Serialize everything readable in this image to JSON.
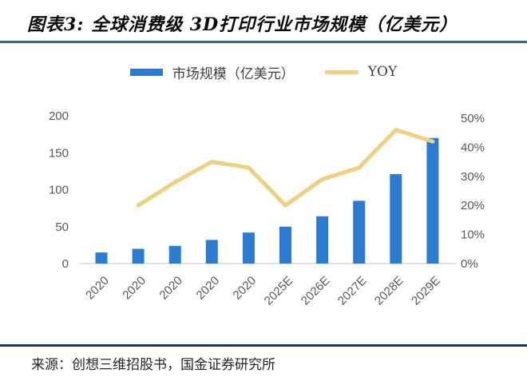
{
  "header": {
    "title": "图表3: 全球消费级 3D打印行业市场规模（亿美元）"
  },
  "chart_data": {
    "type": "bar+line",
    "title": "全球消费级 3D打印行业市场规模（亿美元）",
    "categories": [
      "2020",
      "2020",
      "2020",
      "2020",
      "2020",
      "2025E",
      "2026E",
      "2027E",
      "2028E",
      "2029E"
    ],
    "series": [
      {
        "name": "市场规模（亿美元）",
        "type": "bar",
        "axis": "left",
        "color": "#2B7BD3",
        "values": [
          15,
          20,
          24,
          32,
          42,
          50,
          64,
          85,
          121,
          170
        ]
      },
      {
        "name": "YOY",
        "type": "line",
        "axis": "right",
        "color": "#EFD07E",
        "unit": "%",
        "values": [
          null,
          20,
          28,
          35,
          33,
          20,
          29,
          33,
          46,
          42
        ]
      }
    ],
    "left_axis": {
      "ticks": [
        0,
        50,
        100,
        150,
        200
      ],
      "range": [
        0,
        200
      ]
    },
    "right_axis": {
      "ticks": [
        "0%",
        "10%",
        "20%",
        "30%",
        "40%",
        "50%"
      ],
      "tick_values": [
        0,
        10,
        20,
        30,
        40,
        50
      ],
      "range": [
        0,
        50
      ]
    },
    "grid": false,
    "legend_position": "top"
  },
  "footer": {
    "source": "来源：创想三维招股书，国金证券研究所"
  },
  "colors": {
    "bar": "#2B7BD3",
    "line": "#EFD07E",
    "axis_text": "#595959",
    "baseline": "#D9D9D9",
    "title_text": "#0A0A0A",
    "title_rule": "#31678C",
    "footer_rule": "#17365D",
    "legend_text": "#404040",
    "source_text": "#262626"
  }
}
